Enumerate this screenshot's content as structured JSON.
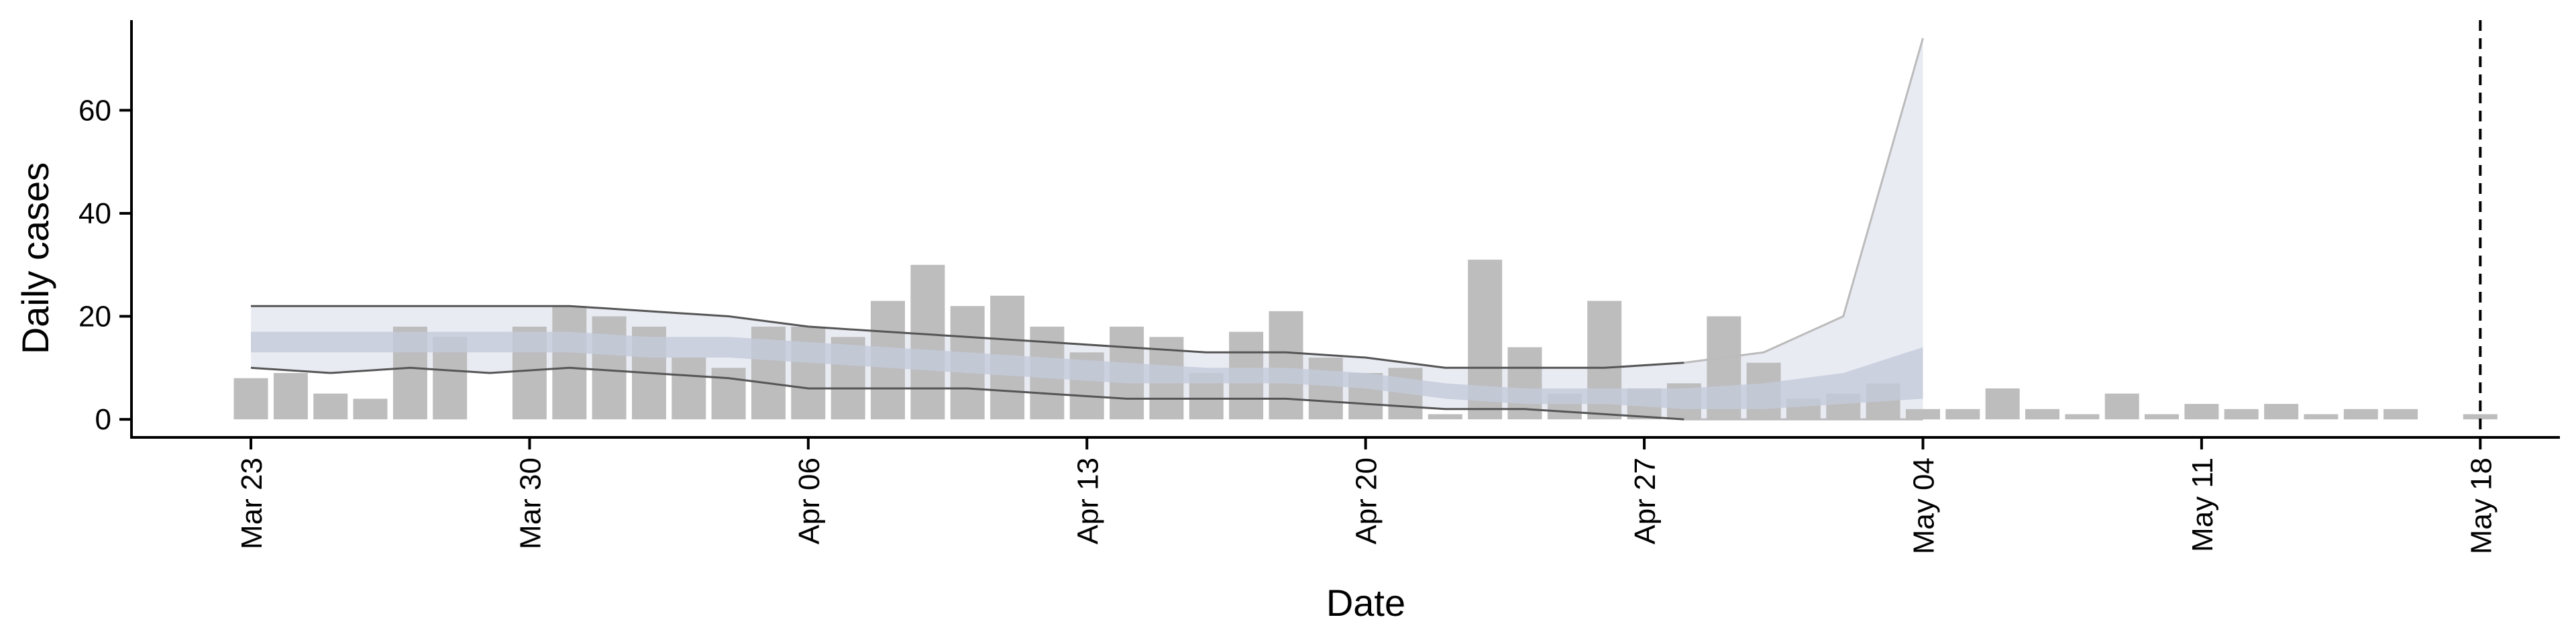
{
  "chart_data": {
    "type": "bar",
    "title": "",
    "xlabel": "Date",
    "ylabel": "Daily cases",
    "x_tick_labels": [
      "Mar 23",
      "Mar 30",
      "Apr 06",
      "Apr 13",
      "Apr 20",
      "Apr 27",
      "May 04",
      "May 11",
      "May 18"
    ],
    "x_tick_dates": [
      "2020-03-23",
      "2020-03-30",
      "2020-04-06",
      "2020-04-13",
      "2020-04-20",
      "2020-04-27",
      "2020-05-04",
      "2020-05-11",
      "2020-05-18"
    ],
    "y_ticks": [
      0,
      20,
      40,
      60
    ],
    "xlim": [
      "2020-03-20",
      "2020-05-20"
    ],
    "ylim": [
      -3.5,
      77.5
    ],
    "grid": false,
    "vline_date": "2020-05-18",
    "colors": {
      "bars": "#bdbdbd",
      "inner_band": "#c4cadb",
      "outer_band": "#e9ebf3",
      "band_lines": "#555555",
      "forecast_lines": "#bbbbbb",
      "axis": "#000000"
    },
    "daily_cases": {
      "dates": [
        "2020-03-23",
        "2020-03-24",
        "2020-03-25",
        "2020-03-26",
        "2020-03-27",
        "2020-03-28",
        "2020-03-30",
        "2020-03-31",
        "2020-04-01",
        "2020-04-02",
        "2020-04-03",
        "2020-04-04",
        "2020-04-05",
        "2020-04-06",
        "2020-04-07",
        "2020-04-08",
        "2020-04-09",
        "2020-04-10",
        "2020-04-11",
        "2020-04-12",
        "2020-04-13",
        "2020-04-14",
        "2020-04-15",
        "2020-04-16",
        "2020-04-17",
        "2020-04-18",
        "2020-04-19",
        "2020-04-20",
        "2020-04-21",
        "2020-04-22",
        "2020-04-23",
        "2020-04-24",
        "2020-04-25",
        "2020-04-26",
        "2020-04-27",
        "2020-04-28",
        "2020-04-29",
        "2020-04-30",
        "2020-05-01",
        "2020-05-02",
        "2020-05-03",
        "2020-05-04",
        "2020-05-05",
        "2020-05-06",
        "2020-05-07",
        "2020-05-08",
        "2020-05-09",
        "2020-05-10",
        "2020-05-11",
        "2020-05-12",
        "2020-05-13",
        "2020-05-14",
        "2020-05-15",
        "2020-05-16",
        "2020-05-18"
      ],
      "values": [
        8,
        9,
        5,
        4,
        18,
        16,
        18,
        22,
        20,
        18,
        12,
        10,
        18,
        18,
        16,
        23,
        30,
        22,
        24,
        18,
        13,
        18,
        16,
        9,
        17,
        21,
        12,
        9,
        10,
        1,
        31,
        14,
        5,
        23,
        6,
        7,
        20,
        11,
        4,
        5,
        7,
        2,
        2,
        6,
        2,
        1,
        5,
        1,
        3,
        2,
        3,
        1,
        2,
        2,
        1
      ]
    },
    "estimate_bands": {
      "dates": [
        "2020-03-23",
        "2020-03-25",
        "2020-03-27",
        "2020-03-29",
        "2020-03-31",
        "2020-04-02",
        "2020-04-04",
        "2020-04-06",
        "2020-04-08",
        "2020-04-10",
        "2020-04-12",
        "2020-04-14",
        "2020-04-16",
        "2020-04-18",
        "2020-04-20",
        "2020-04-22",
        "2020-04-24",
        "2020-04-26",
        "2020-04-28",
        "2020-04-30",
        "2020-05-02",
        "2020-05-04"
      ],
      "outer_upper": [
        22,
        22,
        22,
        22,
        22,
        21,
        20,
        18,
        17,
        16,
        15,
        14,
        13,
        13,
        12,
        10,
        10,
        10,
        11,
        13,
        20,
        74
      ],
      "outer_lower": [
        10,
        9,
        10,
        9,
        10,
        9,
        8,
        6,
        6,
        6,
        5,
        4,
        4,
        4,
        3,
        2,
        2,
        1,
        0,
        0,
        0,
        0
      ],
      "inner_upper": [
        17,
        17,
        17,
        17,
        17,
        16,
        16,
        15,
        14,
        13,
        12,
        11,
        10,
        10,
        9,
        7,
        6,
        6,
        6,
        7,
        9,
        14
      ],
      "inner_lower": [
        13,
        13,
        13,
        13,
        13,
        12,
        12,
        11,
        10,
        9,
        8,
        7,
        7,
        7,
        6,
        4,
        3,
        3,
        2,
        2,
        3,
        4
      ]
    }
  }
}
